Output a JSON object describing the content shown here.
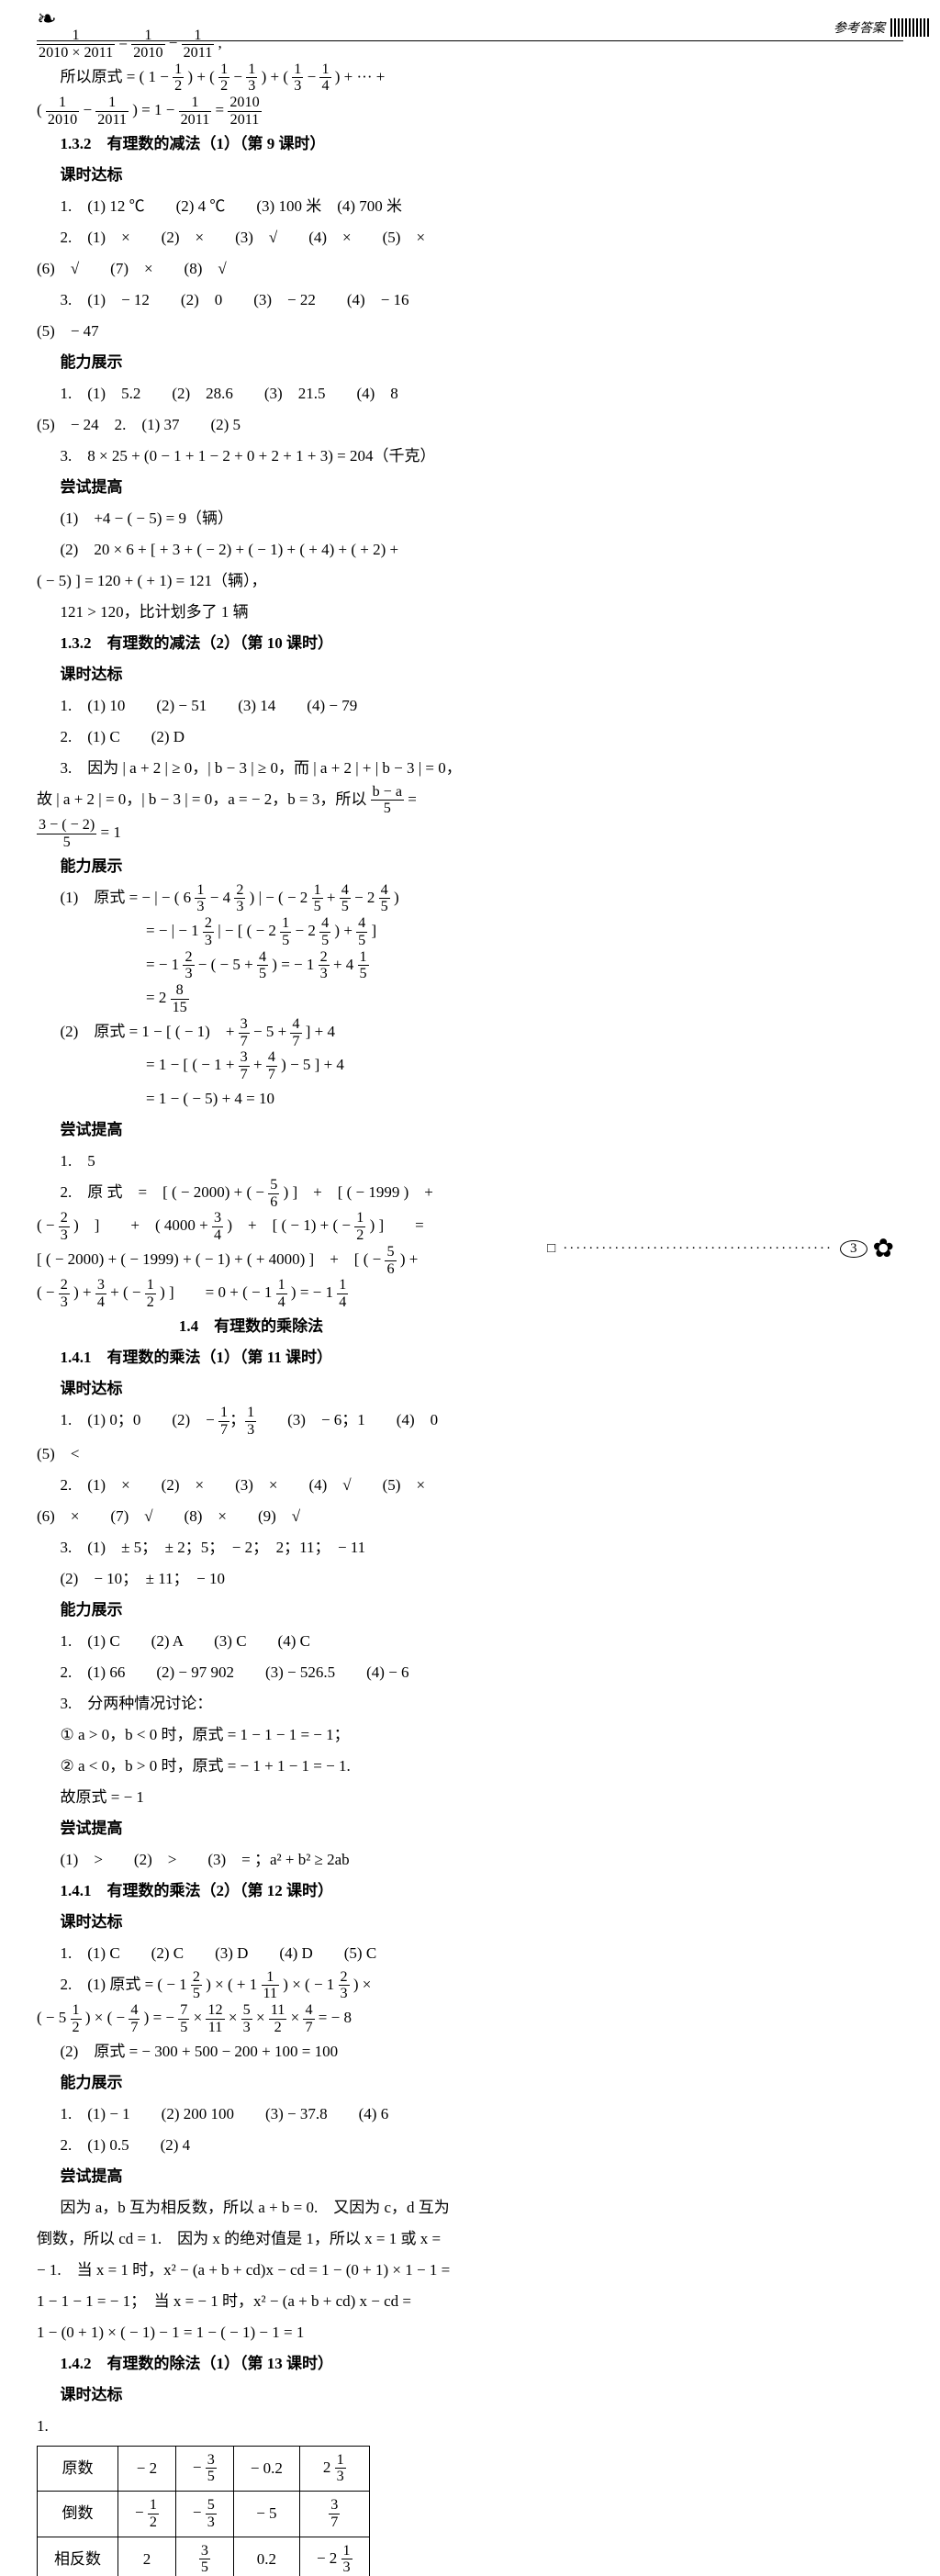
{
  "header_right": "参考答案",
  "leaf_glyph": "❧",
  "page_number": "3",
  "footer_dots": "··········································",
  "footer_square": "□",
  "footer_ornament": "✿",
  "left": {
    "l1a": "1",
    "l1b": "2010 × 2011",
    "l1c": "1",
    "l1d": "2010",
    "l1e": "1",
    "l1f": "2011",
    "l1g": " ,",
    "l2a": "所以原式 = ( 1 − ",
    "l2b": "1",
    "l2c": "2",
    "l2d": " ) + ( ",
    "l2e": "1",
    "l2f": "2",
    "l2g": " − ",
    "l2h": "1",
    "l2i": "3",
    "l2j": " ) + ( ",
    "l2k": "1",
    "l2l": "3",
    "l2m": " − ",
    "l2n": "1",
    "l2o": "4",
    "l2p": " )  + ··· +",
    "l3a": "( ",
    "l3b": "1",
    "l3c": "2010",
    "l3d": " − ",
    "l3e": "1",
    "l3f": "2011",
    "l3g": " ) = 1 − ",
    "l3h": "1",
    "l3i": "2011",
    "l3j": " = ",
    "l3k": "2010",
    "l3l": "2011",
    "s131": "1.3.2　有理数的减法（1）（第 9 课时）",
    "kshi": "课时达标",
    "p1": "1.　(1) 12 ℃　　(2) 4 ℃　　(3) 100 米　(4) 700 米",
    "p2a": "2.　(1)　×　　(2)　×　　(3)　√　　(4)　×　　(5)　×",
    "p2b": "(6)　√　　(7)　×　　(8)　√",
    "p3a": "3.　(1)　− 12　　(2)　0　　(3)　− 22　　(4)　− 16",
    "p3b": "(5)　− 47",
    "nlzs": "能力展示",
    "p4a": "1.　(1)　5.2　　(2)　28.6　　(3)　21.5　　(4)　8",
    "p4b": "(5)　− 24　2.　(1) 37　　(2) 5",
    "p5": "3.　8 × 25 + (0 − 1 + 1 − 2 + 0 + 2 + 1 + 3) = 204（千克）",
    "cstg": "尝试提高",
    "p6": "(1)　+4 − ( − 5) = 9（辆）",
    "p7a": "(2)　20 × 6 + [ + 3 + ( − 2) + ( − 1) + ( + 4) + ( + 2) +",
    "p7b": "( − 5) ] = 120 + ( + 1) = 121（辆），",
    "p7c": "121 > 120，比计划多了 1 辆",
    "s132": "1.3.2　有理数的减法（2）（第 10 课时）",
    "p8": "1.　(1) 10　　(2) − 51　　(3) 14　　(4) − 79",
    "p9": "2.　(1) C　　(2) D",
    "p10a": "3.　因为 | a + 2 | ≥ 0，| b − 3 | ≥ 0，而 | a + 2 | + | b − 3 | = 0，",
    "p10b": "故 | a + 2 | = 0，| b − 3 | = 0，a = − 2，b = 3，所以 ",
    "p10n": "b − a",
    "p10d": "5",
    "p10c": " =",
    "p11n": "3 − ( − 2)",
    "p11d": "5",
    "p11e": " = 1",
    "p12a": "(1)　原式 = − | − ( 6 ",
    "p12b": "1",
    "p12c": "3",
    "p12d": " − 4 ",
    "p12e": "2",
    "p12f": "3",
    "p12g": " ) | − ( − 2 ",
    "p12h": "1",
    "p12i": "5",
    "p12j": " + ",
    "p12k": "4",
    "p12l": "5",
    "p12m": " − 2 ",
    "p12n": "4",
    "p12o": "5",
    "p12p": " )",
    "p13a": "= − | − 1 ",
    "p13b": "2",
    "p13c": "3",
    "p13d": " | − [ ( − 2 ",
    "p13e": "1",
    "p13f": "5",
    "p13g": " − 2 ",
    "p13h": "4",
    "p13i": "5",
    "p13j": " ) + ",
    "p13k": "4",
    "p13l": "5",
    "p13m": " ]",
    "p14a": "= − 1 ",
    "p14b": "2",
    "p14c": "3",
    "p14d": " − ( − 5 + ",
    "p14e": "4",
    "p14f": "5",
    "p14g": " ) = − 1 ",
    "p14h": "2",
    "p14i": "3",
    "p14j": " + 4 ",
    "p14k": "1",
    "p14l": "5",
    "p15a": "= 2 ",
    "p15b": "8",
    "p15c": "15",
    "p16a": "(2)　原式 = 1 − [ ( − 1)　+ ",
    "p16b": "3",
    "p16c": "7",
    "p16d": " − 5 + ",
    "p16e": "4",
    "p16f": "7",
    "p16g": " ] + 4",
    "p17a": "= 1 − [ ( − 1 + ",
    "p17b": "3",
    "p17c": "7",
    "p17d": " + ",
    "p17e": "4",
    "p17f": "7",
    "p17g": " ) − 5 ] + 4",
    "p18": "= 1 − ( − 5) + 4 = 10",
    "p19": "1.　5",
    "p20a": "2.　原 式　=　[ ( − 2000) + ( − ",
    "p20b": "5",
    "p20c": "6",
    "p20d": " ) ]　+　[ ( − 1999 )　+",
    "p21a": "( − ",
    "p21b": "2",
    "p21c": "3",
    "p21d": " )　]　　+　( 4000 + ",
    "p21e": "3",
    "p21f": "4",
    "p21g": " )　+　[ ( − 1) + ( − ",
    "p21h": "1",
    "p21i": "2",
    "p21j": " ) ]　　="
  },
  "right": {
    "r1a": "[ ( − 2000) + ( − 1999) + ( − 1) + ( + 4000) ]　+　[ ( − ",
    "r1b": "5",
    "r1c": "6",
    "r1d": " ) +",
    "r2a": "( − ",
    "r2b": "2",
    "r2c": "3",
    "r2d": " ) + ",
    "r2e": "3",
    "r2f": "4",
    "r2g": " + ( − ",
    "r2h": "1",
    "r2i": "2",
    "r2j": " ) ]　　= 0 + ( − 1 ",
    "r2k": "1",
    "r2l": "4",
    "r2m": " ) = − 1 ",
    "r2n": "1",
    "r2o": "4",
    "sec14": "1.4　有理数的乘除法",
    "s141": "1.4.1　有理数的乘法（1）（第 11 课时）",
    "kshi": "课时达标",
    "rp1a": "1.　(1) 0；0　　(2)　− ",
    "rp1b": "1",
    "rp1c": "7",
    "rp1d": "；",
    "rp1e": "1",
    "rp1f": "3",
    "rp1g": "　　(3)　− 6；1　　(4)　0",
    "rp1h": "(5)　<",
    "rp2a": "2.　(1)　×　　(2)　×　　(3)　×　　(4)　√　　(5)　×",
    "rp2b": "(6)　×　　(7)　√　　(8)　×　　(9)　√",
    "rp3a": "3.　(1)　± 5；　± 2；5；　− 2；　2；11；　− 11",
    "rp3b": "(2)　− 10；　± 11；　− 10",
    "nlzs": "能力展示",
    "rp4": "1.　(1) C　　(2) A　　(3) C　　(4) C",
    "rp5": "2.　(1) 66　　(2) − 97 902　　(3) − 526.5　　(4) − 6",
    "rp6a": "3.　分两种情况讨论：",
    "rp6b": "① a > 0，b < 0 时，原式 = 1 − 1 − 1 = − 1；",
    "rp6c": "② a < 0，b > 0 时，原式 = − 1 + 1 − 1 = − 1.",
    "rp6d": "故原式 = − 1",
    "cstg": "尝试提高",
    "rp7": "(1)　>　　(2)　>　　(3)　= ；a² + b² ≥ 2ab",
    "s141b": "1.4.1　有理数的乘法（2）（第 12 课时）",
    "rp8": "1.　(1) C　　(2) C　　(3) D　　(4) D　　(5) C",
    "rp9a": "2.　(1) 原式 = ( − 1 ",
    "rp9b": "2",
    "rp9c": "5",
    "rp9d": " ) × ( + 1 ",
    "rp9e": "1",
    "rp9f": "11",
    "rp9g": " ) × ( − 1 ",
    "rp9h": "2",
    "rp9i": "3",
    "rp9j": " ) ×",
    "rp10a": "( − 5 ",
    "rp10b": "1",
    "rp10c": "2",
    "rp10d": " ) × ( − ",
    "rp10e": "4",
    "rp10f": "7",
    "rp10g": " ) = − ",
    "rp10h": "7",
    "rp10i": "5",
    "rp10j": " × ",
    "rp10k": "12",
    "rp10l": "11",
    "rp10m": " × ",
    "rp10n": "5",
    "rp10o": "3",
    "rp10p": " × ",
    "rp10q": "11",
    "rp10r": "2",
    "rp10s": " × ",
    "rp10t": "4",
    "rp10u": "7",
    "rp10v": " = − 8",
    "rp11": "(2)　原式 = − 300 + 500 − 200 + 100 = 100",
    "rp12": "1.　(1) − 1　　(2) 200 100　　(3) − 37.8　　(4) 6",
    "rp13": "2.　(1) 0.5　　(2) 4",
    "rp14a": "因为 a，b 互为相反数，所以 a + b = 0.　又因为 c，d 互为",
    "rp14b": "倒数，所以 cd = 1.　因为 x 的绝对值是 1，所以 x = 1 或 x =",
    "rp14c": "− 1.　当 x = 1 时，x² − (a + b + cd)x − cd = 1 − (0 + 1) × 1 − 1 =",
    "rp14d": "1 − 1 − 1 = − 1；　当 x = − 1 时，x² − (a + b + cd) x − cd =",
    "rp14e": "1 − (0 + 1) × ( − 1) − 1 = 1 − ( − 1) − 1 = 1",
    "s142": "1.4.2　有理数的除法（1）（第 13 课时）",
    "rp15": "1."
  },
  "table": {
    "h1": "原数",
    "h2": "倒数",
    "h3": "相反数",
    "c11": "− 2",
    "c12n": "3",
    "c12d": "5",
    "c12p": "− ",
    "c13": "− 0.2",
    "c14n": "1",
    "c14d": "3",
    "c14p": "2 ",
    "c21n": "1",
    "c21d": "2",
    "c21p": "− ",
    "c22n": "5",
    "c22d": "3",
    "c22p": "− ",
    "c23": "− 5",
    "c24n": "3",
    "c24d": "7",
    "c31": "2",
    "c32n": "3",
    "c32d": "5",
    "c33": "0.2",
    "c34n": "1",
    "c34d": "3",
    "c34p": "− 2 "
  }
}
